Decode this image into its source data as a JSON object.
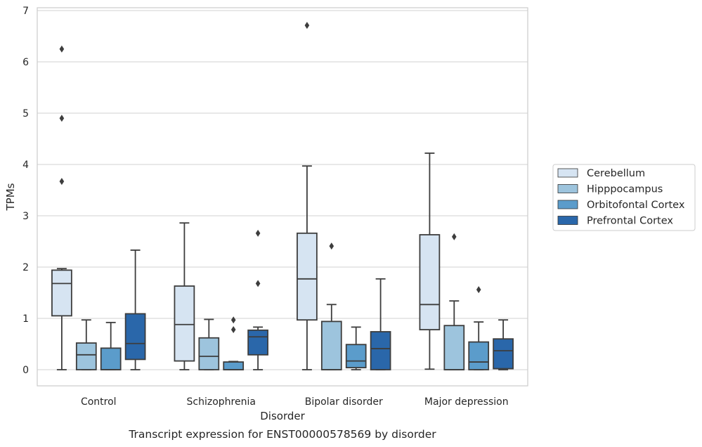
{
  "chart_data": {
    "type": "boxplot",
    "caption": "Transcript expression for ENST00000578569 by disorder",
    "xlabel": "Disorder",
    "ylabel": "TPMs",
    "ylim": [
      -0.32,
      7.05
    ],
    "yticks": [
      0,
      1,
      2,
      3,
      4,
      5,
      6,
      7
    ],
    "grid": "horizontal",
    "legend_position": "right",
    "categories": [
      "Control",
      "Schizophrenia",
      "Bipolar disorder",
      "Major depression"
    ],
    "series": [
      {
        "name": "Cerebellum",
        "color": "#d6e4f2",
        "boxes": [
          {
            "whislo": 0.0,
            "q1": 1.05,
            "med": 1.68,
            "q3": 1.94,
            "whishi": 1.97,
            "fliers": [
              3.67,
              4.9,
              6.25
            ]
          },
          {
            "whislo": 0.0,
            "q1": 0.17,
            "med": 0.88,
            "q3": 1.63,
            "whishi": 2.86,
            "fliers": []
          },
          {
            "whislo": 0.0,
            "q1": 0.97,
            "med": 1.77,
            "q3": 2.66,
            "whishi": 3.97,
            "fliers": [
              6.71
            ]
          },
          {
            "whislo": 0.01,
            "q1": 0.78,
            "med": 1.27,
            "q3": 2.63,
            "whishi": 4.22,
            "fliers": []
          }
        ]
      },
      {
        "name": "Hipppocampus",
        "color": "#9dc4dd",
        "boxes": [
          {
            "whislo": 0.0,
            "q1": 0.0,
            "med": 0.29,
            "q3": 0.52,
            "whishi": 0.97,
            "fliers": []
          },
          {
            "whislo": 0.0,
            "q1": 0.0,
            "med": 0.26,
            "q3": 0.62,
            "whishi": 0.98,
            "fliers": []
          },
          {
            "whislo": 0.0,
            "q1": 0.0,
            "med": 0.0,
            "q3": 0.94,
            "whishi": 1.27,
            "fliers": [
              2.41
            ]
          },
          {
            "whislo": 0.0,
            "q1": 0.0,
            "med": 0.0,
            "q3": 0.86,
            "whishi": 1.34,
            "fliers": [
              2.59
            ]
          }
        ]
      },
      {
        "name": "Orbitofontal Cortex",
        "color": "#5b9ccb",
        "boxes": [
          {
            "whislo": 0.0,
            "q1": 0.0,
            "med": 0.0,
            "q3": 0.42,
            "whishi": 0.92,
            "fliers": []
          },
          {
            "whislo": 0.0,
            "q1": 0.0,
            "med": 0.0,
            "q3": 0.15,
            "whishi": 0.16,
            "fliers": [
              0.78,
              0.97
            ]
          },
          {
            "whislo": 0.0,
            "q1": 0.04,
            "med": 0.17,
            "q3": 0.49,
            "whishi": 0.83,
            "fliers": []
          },
          {
            "whislo": 0.0,
            "q1": 0.0,
            "med": 0.15,
            "q3": 0.54,
            "whishi": 0.93,
            "fliers": [
              1.56
            ]
          }
        ]
      },
      {
        "name": "Prefrontal Cortex",
        "color": "#2a67aa",
        "boxes": [
          {
            "whislo": 0.0,
            "q1": 0.2,
            "med": 0.51,
            "q3": 1.09,
            "whishi": 2.33,
            "fliers": []
          },
          {
            "whislo": 0.0,
            "q1": 0.29,
            "med": 0.64,
            "q3": 0.77,
            "whishi": 0.83,
            "fliers": [
              1.68,
              2.66
            ]
          },
          {
            "whislo": 0.0,
            "q1": 0.0,
            "med": 0.41,
            "q3": 0.74,
            "whishi": 1.77,
            "fliers": []
          },
          {
            "whislo": 0.0,
            "q1": 0.02,
            "med": 0.37,
            "q3": 0.6,
            "whishi": 0.97,
            "fliers": []
          }
        ]
      }
    ]
  }
}
